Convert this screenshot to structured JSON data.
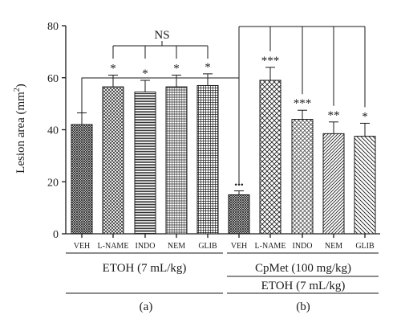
{
  "chart_data": {
    "type": "bar",
    "ylabel": "Lesion area (mm",
    "ylabel_sup": "2",
    "ylabel_close": ")",
    "ylim": [
      0,
      80
    ],
    "yticks": [
      0,
      20,
      40,
      60,
      80
    ],
    "categories": [
      "VEH",
      "L-NAME",
      "INDO",
      "NEM",
      "GLIB",
      "VEH",
      "L-NAME",
      "INDO",
      "NEM",
      "GLIB"
    ],
    "values": [
      42,
      56.5,
      54.5,
      56.5,
      57,
      15,
      59,
      44,
      38.5,
      37.5
    ],
    "errors": [
      4.5,
      4.5,
      4.5,
      4.5,
      4.5,
      1.5,
      5,
      3.5,
      4.5,
      5
    ],
    "significance": [
      "",
      "*",
      "*",
      "*",
      "*",
      "•••",
      "***",
      "***",
      "**",
      "*"
    ],
    "patterns": [
      "cross-dense",
      "cross",
      "hstripe",
      "hstripe-fine",
      "dot-grid",
      "cross-dense",
      "cross-wide",
      "diamond",
      "diag-right",
      "diag-left"
    ],
    "bracket_label": "NS",
    "groups": {
      "a_etoh": "ETOH (7 mL/kg)",
      "b_cpmet": "CpMet (100 mg/kg)",
      "b_etoh": "ETOH (7 mL/kg)",
      "panel_a": "(a)",
      "panel_b": "(b)"
    }
  }
}
